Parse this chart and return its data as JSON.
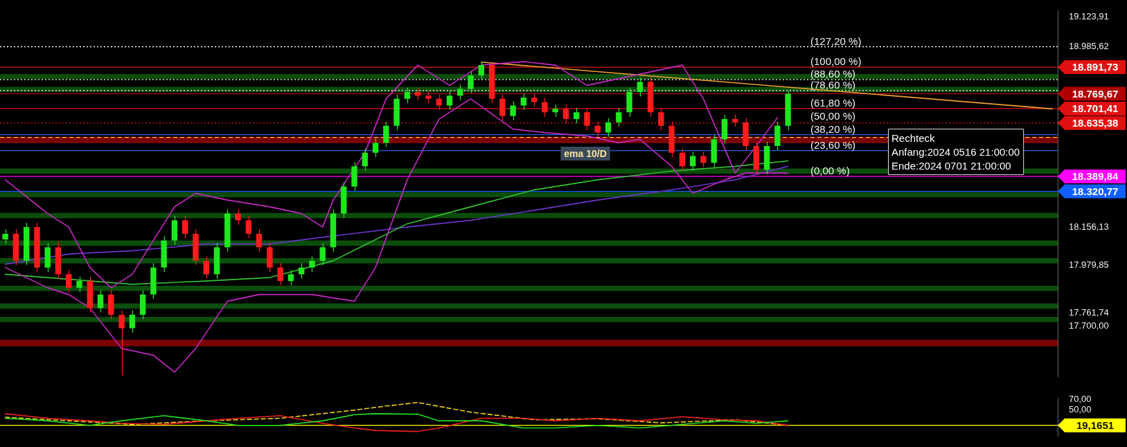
{
  "chart_data": [
    {
      "type": "candlestick",
      "categories": [
        null,
        null,
        null,
        null,
        null,
        null,
        null,
        null,
        null,
        null,
        null,
        null,
        null,
        null,
        null,
        null,
        null,
        null,
        null,
        null,
        null,
        null,
        null,
        null,
        null,
        null,
        null,
        null,
        null,
        null,
        null,
        null,
        null,
        null,
        null,
        null,
        null,
        null,
        null,
        null,
        null,
        null,
        null,
        null,
        null,
        null,
        null,
        null,
        null,
        null,
        null,
        null,
        null,
        null,
        null,
        null,
        null,
        null,
        null,
        null,
        null,
        null,
        null,
        null,
        null,
        null,
        null,
        null,
        null,
        null,
        null,
        null,
        null,
        null,
        null,
        null,
        null,
        null,
        null,
        null,
        null,
        null,
        null,
        null,
        null,
        null,
        null,
        null,
        null,
        null,
        null,
        null,
        null,
        null,
        null,
        null,
        null,
        null,
        null,
        null
      ],
      "ohlc": [
        [
          18100,
          18146,
          18080,
          18126
        ],
        [
          18126,
          18146,
          17982,
          18002
        ],
        [
          18002,
          18177,
          17982,
          18157
        ],
        [
          18157,
          18177,
          17951,
          17971
        ],
        [
          17971,
          18084,
          17951,
          18064
        ],
        [
          18064,
          18084,
          17920,
          17940
        ],
        [
          17940,
          17960,
          17858,
          17878
        ],
        [
          17878,
          17929,
          17858,
          17909
        ],
        [
          17909,
          17929,
          17765,
          17785
        ],
        [
          17785,
          17867,
          17765,
          17847
        ],
        [
          17847,
          17867,
          17734,
          17754
        ],
        [
          17754,
          17774,
          17475,
          17692
        ],
        [
          17692,
          17774,
          17672,
          17754
        ],
        [
          17754,
          17867,
          17734,
          17847
        ],
        [
          17847,
          17991,
          17827,
          17971
        ],
        [
          17971,
          18115,
          17951,
          18095
        ],
        [
          18095,
          18208,
          18075,
          18188
        ],
        [
          18188,
          18208,
          18106,
          18126
        ],
        [
          18126,
          18146,
          17982,
          18002
        ],
        [
          18002,
          18022,
          17920,
          17940
        ],
        [
          17940,
          18084,
          17920,
          18064
        ],
        [
          18064,
          18239,
          18044,
          18219
        ],
        [
          18219,
          18239,
          18168,
          18188
        ],
        [
          18188,
          18208,
          18106,
          18126
        ],
        [
          18126,
          18146,
          18044,
          18064
        ],
        [
          18064,
          18084,
          17951,
          17971
        ],
        [
          17971,
          17991,
          17889,
          17909
        ],
        [
          17909,
          17960,
          17889,
          17940
        ],
        [
          17940,
          17991,
          17920,
          17971
        ],
        [
          17971,
          18022,
          17951,
          18002
        ],
        [
          18002,
          18084,
          17982,
          18064
        ],
        [
          18064,
          18239,
          18044,
          18219
        ],
        [
          18219,
          18363,
          18199,
          18343
        ],
        [
          18343,
          18456,
          18323,
          18436
        ],
        [
          18436,
          18518,
          18416,
          18498
        ],
        [
          18498,
          18564,
          18478,
          18544
        ],
        [
          18544,
          18642,
          18524,
          18622
        ],
        [
          18622,
          18766,
          18602,
          18746
        ],
        [
          18746,
          18797,
          18726,
          18777
        ],
        [
          18777,
          18797,
          18741,
          18761
        ],
        [
          18761,
          18781,
          18726,
          18746
        ],
        [
          18746,
          18766,
          18695,
          18715
        ],
        [
          18715,
          18781,
          18695,
          18761
        ],
        [
          18761,
          18812,
          18741,
          18792
        ],
        [
          18792,
          18874,
          18772,
          18854
        ],
        [
          18854,
          18915,
          18834,
          18901
        ],
        [
          18901,
          18911,
          18726,
          18746
        ],
        [
          18746,
          18766,
          18648,
          18668
        ],
        [
          18668,
          18735,
          18648,
          18715
        ],
        [
          18715,
          18772,
          18695,
          18752
        ],
        [
          18752,
          18772,
          18711,
          18731
        ],
        [
          18731,
          18751,
          18664,
          18684
        ],
        [
          18684,
          18720,
          18664,
          18700
        ],
        [
          18700,
          18720,
          18633,
          18653
        ],
        [
          18653,
          18704,
          18633,
          18684
        ],
        [
          18684,
          18704,
          18602,
          18622
        ],
        [
          18622,
          18642,
          18571,
          18591
        ],
        [
          18591,
          18658,
          18571,
          18638
        ],
        [
          18638,
          18704,
          18618,
          18684
        ],
        [
          18684,
          18797,
          18664,
          18777
        ],
        [
          18777,
          18844,
          18757,
          18824
        ],
        [
          18824,
          18844,
          18664,
          18684
        ],
        [
          18684,
          18704,
          18602,
          18622
        ],
        [
          18622,
          18642,
          18478,
          18498
        ],
        [
          18498,
          18518,
          18416,
          18436
        ],
        [
          18436,
          18503,
          18416,
          18483
        ],
        [
          18483,
          18503,
          18432,
          18452
        ],
        [
          18452,
          18580,
          18432,
          18560
        ],
        [
          18560,
          18673,
          18540,
          18653
        ],
        [
          18653,
          18673,
          18618,
          18638
        ],
        [
          18638,
          18658,
          18509,
          18529
        ],
        [
          18529,
          18549,
          18400,
          18420
        ],
        [
          18420,
          18549,
          18400,
          18529
        ],
        [
          18529,
          18642,
          18509,
          18622
        ],
        [
          18622,
          18783,
          18602,
          18769.67
        ],
        null,
        null,
        null,
        null,
        null,
        null,
        null,
        null,
        null,
        null,
        null,
        null,
        null,
        null,
        null,
        null,
        null,
        null,
        null,
        null,
        null,
        null,
        null,
        null,
        null
      ],
      "colors": [
        "#1ee81e",
        "#ff1c1c",
        "#1ee81e",
        "#ff1c1c",
        "#1ee81e",
        "#ff1c1c",
        "#ff1c1c",
        "#1ee81e",
        "#ff1c1c",
        "#1ee81e",
        "#ff1c1c",
        "#ff1c1c",
        "#1ee81e",
        "#1ee81e",
        "#1ee81e",
        "#1ee81e",
        "#1ee81e",
        "#ff1c1c",
        "#ff1c1c",
        "#ff1c1c",
        "#1ee81e",
        "#1ee81e",
        "#ff1c1c",
        "#ff1c1c",
        "#ff1c1c",
        "#ff1c1c",
        "#ff1c1c",
        "#1ee81e",
        "#1ee81e",
        "#1ee81e",
        "#1ee81e",
        "#1ee81e",
        "#1ee81e",
        "#1ee81e",
        "#1ee81e",
        "#1ee81e",
        "#1ee81e",
        "#1ee81e",
        "#1ee81e",
        "#ff1c1c",
        "#ff1c1c",
        "#ff1c1c",
        "#1ee81e",
        "#1ee81e",
        "#1ee81e",
        "#1ee81e",
        "#ff1c1c",
        "#ff1c1c",
        "#1ee81e",
        "#1ee81e",
        "#ff1c1c",
        "#ff1c1c",
        "#1ee81e",
        "#ff1c1c",
        "#1ee81e",
        "#ff1c1c",
        "#ff1c1c",
        "#1ee81e",
        "#1ee81e",
        "#1ee81e",
        "#1ee81e",
        "#ff1c1c",
        "#ff1c1c",
        "#ff1c1c",
        "#ff1c1c",
        "#1ee81e",
        "#ff1c1c",
        "#1ee81e",
        "#1ee81e",
        "#ff1c1c",
        "#ff1c1c",
        "#ff1c1c",
        "#1ee81e",
        "#1ee81e",
        "#1ee81e",
        null,
        null,
        null,
        null,
        null,
        null,
        null,
        null,
        null,
        null,
        null,
        null,
        null,
        null,
        null,
        null,
        null,
        null,
        null,
        null,
        null,
        null,
        null,
        null,
        null
      ],
      "series": [
        {
          "type": "line",
          "color": "#c42ac4",
          "values": [
            18374,
            null,
            null,
            null,
            18219,
            null,
            18157,
            null,
            17971,
            null,
            17878,
            null,
            17940,
            null,
            null,
            null,
            18250,
            null,
            18312,
            null,
            null,
            18281,
            null,
            null,
            null,
            18250,
            null,
            null,
            18219,
            null,
            18157,
            18281,
            null,
            null,
            18498,
            null,
            18746,
            null,
            null,
            18901,
            null,
            null,
            18808,
            null,
            null,
            18901,
            null,
            null,
            null,
            18917,
            null,
            null,
            18901,
            null,
            null,
            18808,
            null,
            null,
            18839,
            null,
            null,
            null,
            null,
            null,
            18901,
            null,
            18746,
            null,
            null,
            18405,
            null,
            18529,
            null,
            18660,
            null,
            null,
            null,
            null,
            null,
            null,
            null,
            null,
            null,
            null,
            null,
            null,
            null,
            null,
            null,
            null,
            null,
            null,
            null,
            null,
            null,
            null,
            null,
            null,
            null,
            null
          ]
        },
        {
          "type": "line",
          "color": "#c42ac4",
          "values": [
            17971,
            null,
            null,
            null,
            17878,
            null,
            17847,
            null,
            17785,
            null,
            null,
            17599,
            null,
            null,
            17568,
            null,
            17490,
            null,
            17599,
            null,
            null,
            17816,
            null,
            null,
            17847,
            null,
            17847,
            null,
            null,
            17847,
            null,
            null,
            null,
            17816,
            null,
            17971,
            null,
            null,
            18374,
            null,
            null,
            18653,
            null,
            null,
            18746,
            null,
            null,
            null,
            18607,
            null,
            null,
            18591,
            null,
            null,
            null,
            18575,
            null,
            null,
            18544,
            null,
            18560,
            null,
            null,
            18436,
            null,
            18312,
            null,
            null,
            18374,
            null,
            18405,
            null,
            null,
            null,
            18405,
            null,
            null,
            null,
            null,
            null,
            null,
            null,
            null,
            null,
            null,
            null,
            null,
            null,
            null,
            null,
            null,
            null,
            null,
            null,
            null,
            null,
            null,
            null,
            null,
            null
          ]
        },
        {
          "type": "line",
          "color": "#33c233",
          "values": [
            17940,
            null,
            null,
            null,
            17925,
            null,
            null,
            null,
            null,
            null,
            null,
            null,
            17894,
            null,
            null,
            null,
            null,
            null,
            null,
            17909,
            null,
            null,
            null,
            null,
            null,
            17925,
            null,
            null,
            null,
            null,
            null,
            18002,
            null,
            null,
            null,
            null,
            null,
            null,
            18172,
            null,
            null,
            null,
            null,
            null,
            18250,
            null,
            null,
            null,
            null,
            null,
            18328,
            null,
            null,
            null,
            null,
            null,
            18374,
            null,
            null,
            null,
            null,
            null,
            null,
            18414,
            null,
            null,
            null,
            null,
            null,
            18436,
            null,
            null,
            null,
            null,
            18461,
            null,
            null,
            null,
            null,
            null,
            null,
            null,
            null,
            null,
            null,
            null,
            null,
            null,
            null,
            null,
            null,
            null,
            null,
            null,
            null,
            null,
            null,
            null,
            null,
            null
          ]
        },
        {
          "type": "line",
          "color": "#6a35c8",
          "values": [
            17986,
            null,
            null,
            null,
            null,
            null,
            18033,
            null,
            null,
            null,
            null,
            null,
            18048,
            null,
            null,
            null,
            null,
            null,
            null,
            18079,
            null,
            null,
            null,
            null,
            null,
            18079,
            null,
            null,
            null,
            null,
            18110,
            null,
            null,
            null,
            null,
            null,
            null,
            null,
            18157,
            null,
            null,
            null,
            null,
            null,
            18188,
            null,
            null,
            null,
            null,
            null,
            18234,
            null,
            null,
            null,
            null,
            null,
            18281,
            null,
            null,
            null,
            null,
            null,
            null,
            18328,
            null,
            null,
            null,
            null,
            null,
            18374,
            null,
            null,
            null,
            null,
            18436,
            null,
            null,
            null,
            null,
            null,
            null,
            null,
            null,
            null,
            null,
            null,
            null,
            null,
            null,
            null,
            null,
            null,
            null,
            null,
            null,
            null,
            null,
            null,
            null,
            null
          ]
        },
        {
          "type": "line",
          "color": "#f0a030",
          "values": [
            null,
            null,
            null,
            null,
            null,
            null,
            null,
            null,
            null,
            null,
            null,
            null,
            null,
            null,
            null,
            null,
            null,
            null,
            null,
            null,
            null,
            null,
            null,
            null,
            null,
            null,
            null,
            null,
            null,
            null,
            null,
            null,
            null,
            null,
            null,
            null,
            null,
            null,
            null,
            null,
            null,
            null,
            null,
            null,
            null,
            18915,
            null,
            null,
            null,
            null,
            null,
            null,
            null,
            null,
            null,
            null,
            null,
            null,
            null,
            null,
            null,
            null,
            null,
            null,
            null,
            null,
            null,
            null,
            null,
            null,
            null,
            null,
            null,
            null,
            null,
            null,
            null,
            null,
            null,
            null,
            null,
            null,
            null,
            null,
            null,
            null,
            null,
            null,
            null,
            null,
            null,
            null,
            null,
            null,
            null,
            null,
            null,
            null,
            null,
            18700
          ]
        }
      ],
      "ylim": [
        17470,
        19150
      ],
      "yticks": [
        {
          "value": 19123.91,
          "label": "19.123,91"
        },
        {
          "value": 18985.62,
          "label": "18.985,62"
        },
        {
          "value": 18156.13,
          "label": "18.156,13"
        },
        {
          "value": 17979.85,
          "label": "17.979,85"
        },
        {
          "value": 17761.74,
          "label": "17.761,74"
        },
        {
          "value": 17700,
          "label": "17.700,00"
        }
      ],
      "tick_labels": "y",
      "bands": [
        {
          "axis": "y",
          "from": 18836,
          "to": 18860,
          "color": "#0b4d0b"
        },
        {
          "axis": "y",
          "from": 18777,
          "to": 18801,
          "color": "#0b4d0b"
        },
        {
          "axis": "y",
          "from": 18402,
          "to": 18426,
          "color": "#0b4d0b"
        },
        {
          "axis": "y",
          "from": 18294,
          "to": 18318,
          "color": "#0b4d0b"
        },
        {
          "axis": "y",
          "from": 18198,
          "to": 18222,
          "color": "#0b4d0b"
        },
        {
          "axis": "y",
          "from": 18071,
          "to": 18095,
          "color": "#0b4d0b"
        },
        {
          "axis": "y",
          "from": 17990,
          "to": 18014,
          "color": "#0b4d0b"
        },
        {
          "axis": "y",
          "from": 17863,
          "to": 17887,
          "color": "#0b4d0b"
        },
        {
          "axis": "y",
          "from": 17782,
          "to": 17806,
          "color": "#0b4d0b"
        },
        {
          "axis": "y",
          "from": 17720,
          "to": 17744,
          "color": "#0b4d0b"
        },
        {
          "axis": "y",
          "from": 18542,
          "to": 18572,
          "color": "#7a0000"
        },
        {
          "axis": "y",
          "from": 17609,
          "to": 17639,
          "color": "#7a0000"
        }
      ],
      "ref_lines": [
        {
          "axis": "y",
          "value": 18985.62,
          "color": "#ffffff",
          "line_style": "dotted"
        },
        {
          "axis": "y",
          "value": 18891.73,
          "label": "18.891,73",
          "color": "#e01010"
        },
        {
          "axis": "y",
          "value": 18834.5,
          "color": "#ffffff",
          "line_style": "dotted"
        },
        {
          "axis": "y",
          "value": 18784.3,
          "color": "#ffffff",
          "line_style": "dotted"
        },
        {
          "axis": "y",
          "value": 18769.67,
          "label": "18.769,67",
          "color": "#b00000"
        },
        {
          "axis": "y",
          "value": 18701.41,
          "label": "18.701,41",
          "color": "#e01010"
        },
        {
          "axis": "y",
          "value": 18635.38,
          "label": "18.635,38",
          "color": "#e01010",
          "line_style": "dotted"
        },
        {
          "axis": "y",
          "value": 18581.6,
          "color": "#2060e0"
        },
        {
          "axis": "y",
          "value": 18569,
          "color": "#ffcc33",
          "line_style": "dashed"
        },
        {
          "axis": "y",
          "value": 18508.3,
          "color": "#2060e0"
        },
        {
          "axis": "y",
          "value": 18389.84,
          "label": "18.389,84",
          "color": "#ff00ff"
        },
        {
          "axis": "y",
          "value": 18320.77,
          "label": "18.320,77",
          "color": "#1060ff"
        }
      ],
      "annotations": [
        "ema 10/D",
        {
          "text": "(127,20 %)",
          "y": 18985.62
        },
        {
          "text": "(100,00 %)",
          "y": 18891.73
        },
        {
          "text": "(88,60 %)",
          "y": 18834.5
        },
        {
          "text": "(78,60 %)",
          "y": 18784.3
        },
        {
          "text": "(61,80 %)",
          "y": 18701.41
        },
        {
          "text": "(50,00 %)",
          "y": 18640.8
        },
        {
          "text": "(38,20 %)",
          "y": 18581.6
        },
        {
          "text": "(23,60 %)",
          "y": 18508.3
        },
        {
          "text": "(0,00 %)",
          "y": 18389.84
        },
        "Rechteck",
        "Anfang:2024 0516 21:00:00",
        "Ende:2024 0701 21:00:00"
      ]
    },
    {
      "type": "line",
      "categories": [
        null,
        null,
        null,
        null,
        null,
        null,
        null,
        null,
        null,
        null,
        null,
        null,
        null,
        null,
        null,
        null,
        null,
        null,
        null,
        null,
        null,
        null,
        null,
        null,
        null,
        null,
        null,
        null,
        null,
        null,
        null,
        null,
        null,
        null,
        null,
        null,
        null,
        null,
        null,
        null,
        null,
        null,
        null,
        null,
        null,
        null,
        null,
        null,
        null,
        null,
        null,
        null,
        null,
        null,
        null,
        null,
        null,
        null,
        null,
        null,
        null,
        null,
        null,
        null,
        null,
        null,
        null,
        null,
        null,
        null,
        null,
        null,
        null,
        null,
        null,
        null,
        null,
        null,
        null,
        null,
        null,
        null,
        null,
        null,
        null,
        null,
        null,
        null,
        null,
        null,
        null,
        null,
        null,
        null,
        null,
        null,
        null,
        null,
        null,
        null
      ],
      "series": [
        {
          "color": "#22dd22",
          "values": [
            33,
            null,
            null,
            null,
            28,
            null,
            null,
            null,
            19,
            null,
            null,
            28,
            null,
            null,
            null,
            38,
            null,
            null,
            null,
            28,
            null,
            null,
            19,
            null,
            null,
            null,
            19,
            null,
            null,
            null,
            28,
            null,
            null,
            40,
            null,
            42,
            null,
            null,
            null,
            41,
            null,
            28,
            null,
            null,
            null,
            28,
            null,
            null,
            null,
            14,
            null,
            null,
            14,
            null,
            null,
            null,
            19,
            null,
            null,
            null,
            14,
            null,
            null,
            null,
            21,
            null,
            null,
            null,
            28,
            null,
            null,
            23,
            null,
            null,
            28,
            null,
            null,
            null,
            null,
            null,
            null,
            null,
            null,
            null,
            null,
            null,
            null,
            null,
            null,
            null,
            null,
            null,
            null,
            null,
            null,
            null,
            null,
            null,
            null,
            null
          ]
        },
        {
          "color": "#ee2020",
          "values": [
            42,
            null,
            null,
            null,
            33,
            null,
            null,
            null,
            28,
            null,
            null,
            23,
            null,
            null,
            null,
            21,
            null,
            null,
            null,
            28,
            null,
            null,
            33,
            null,
            null,
            null,
            38,
            null,
            null,
            null,
            23,
            null,
            null,
            14,
            null,
            9,
            null,
            null,
            null,
            7,
            null,
            14,
            null,
            null,
            null,
            33,
            null,
            null,
            null,
            33,
            null,
            null,
            28,
            null,
            null,
            null,
            33,
            null,
            null,
            null,
            28,
            null,
            null,
            null,
            36,
            null,
            null,
            null,
            30,
            null,
            null,
            28,
            null,
            null,
            19,
            null,
            null,
            null,
            null,
            null,
            null,
            null,
            null,
            null,
            null,
            null,
            null,
            null,
            null,
            null,
            null,
            null,
            null,
            null,
            null,
            null,
            null,
            null,
            null,
            null
          ]
        },
        {
          "color": "#f2d21a",
          "line_style": "dashed",
          "values": [
            35,
            null,
            null,
            null,
            null,
            null,
            28,
            null,
            null,
            null,
            null,
            null,
            21,
            null,
            null,
            null,
            null,
            null,
            null,
            28,
            null,
            null,
            null,
            null,
            null,
            null,
            33,
            null,
            null,
            null,
            null,
            null,
            null,
            49,
            null,
            null,
            57,
            null,
            null,
            64,
            null,
            null,
            null,
            null,
            45,
            null,
            null,
            null,
            null,
            null,
            30,
            null,
            null,
            null,
            null,
            null,
            32,
            null,
            null,
            null,
            null,
            null,
            24,
            null,
            null,
            null,
            null,
            null,
            null,
            30,
            null,
            null,
            null,
            null,
            19.1651,
            null,
            null,
            null,
            null,
            null,
            null,
            null,
            null,
            null,
            null,
            null,
            null,
            null,
            null,
            null,
            null,
            null,
            null,
            null,
            null,
            null,
            null,
            null,
            null,
            null
          ]
        }
      ],
      "ylim": [
        -2,
        72
      ],
      "yticks": [
        {
          "value": 70,
          "label": "70,00"
        },
        {
          "value": 50,
          "label": "50,00"
        }
      ],
      "tick_labels": "y",
      "ref_lines": [
        {
          "axis": "y",
          "value": 19.1651,
          "label": "19,1651",
          "color": "#ffff00"
        }
      ]
    }
  ]
}
